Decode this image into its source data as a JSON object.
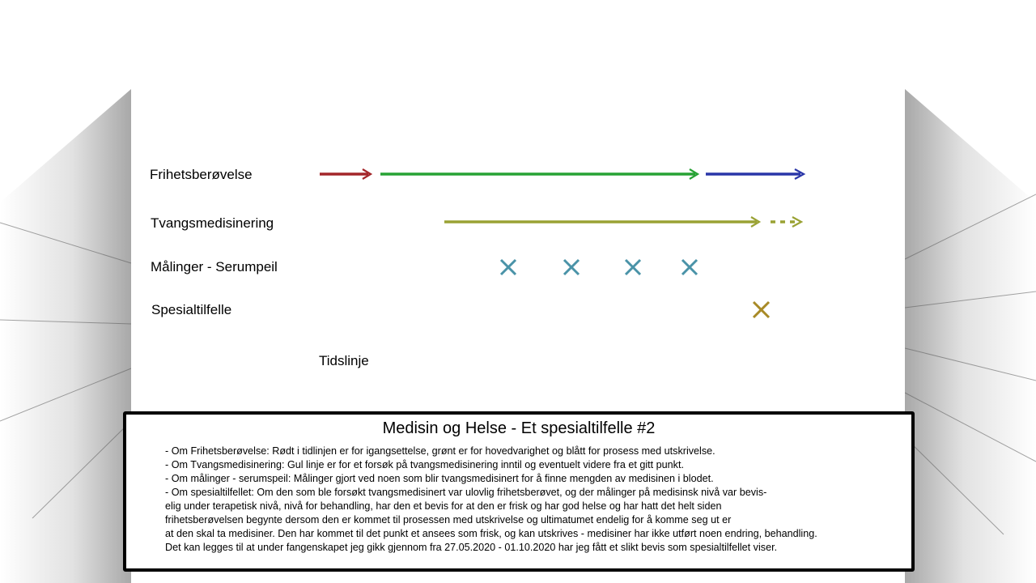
{
  "rows": [
    {
      "label": "Frihetsberøvelse"
    },
    {
      "label": "Tvangsmedisinering"
    },
    {
      "label": "Målinger - Serumpeil"
    },
    {
      "label": "Spesialtilfelle"
    }
  ],
  "axis_label": "Tidslinje",
  "colors": {
    "frihet_start": "#a3262a",
    "frihet_main": "#27a234",
    "frihet_exit": "#2a36a8",
    "tvang": "#9aa234",
    "maaling": "#4a93a8",
    "spesial": "#a88a26"
  },
  "caption": {
    "title": "Medisin og Helse - Et spesialtilfelle #2",
    "lines": [
      "- Om Frihetsberøvelse: Rødt i tidlinjen er for igangsettelse, grønt er for hovedvarighet og blått for prosess med utskrivelse.",
      "- Om Tvangsmedisinering: Gul linje er for et forsøk på tvangsmedisinering inntil og eventuelt videre fra et gitt punkt.",
      "- Om målinger - serumspeil: Målinger gjort ved noen som blir tvangsmedisinert for å finne mengden av medisinen i blodet.",
      "- Om spesialtilfellet: Om den som ble forsøkt tvangsmedisinert var ulovlig frihetsberøvet, og der målinger på medisinsk nivå var bevis-",
      "elig under terapetisk nivå, nivå for behandling, har den et bevis for at den er frisk og har god helse og har hatt det helt siden",
      "frihetsberøvelsen begynte dersom den er kommet til prosessen med utskrivelse og ultimatumet endelig for å komme seg ut er",
      "at den skal ta medisiner. Den har kommet til det punkt et ansees som frisk, og kan utskrives - medisiner har ikke utført noen endring, behandling.",
      "Det kan legges til at under fangenskapet jeg gikk gjennom fra 27.05.2020 - 01.10.2020 har jeg fått et slikt bevis som spesialtilfellet viser."
    ]
  }
}
